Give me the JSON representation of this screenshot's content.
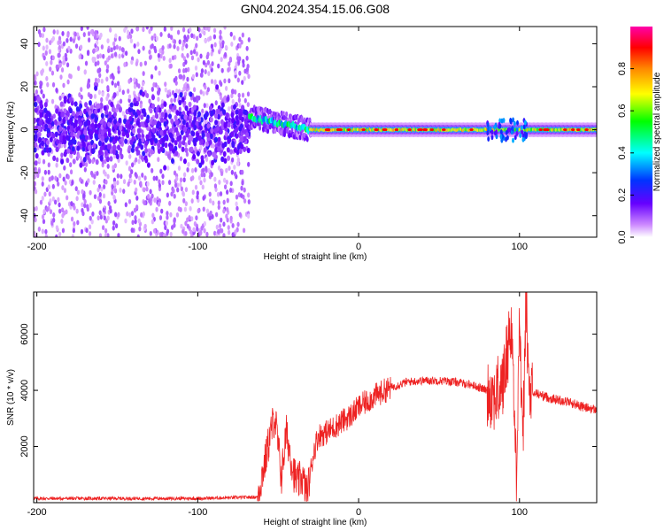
{
  "title": "GN04.2024.354.15.06.G08",
  "chart_data": [
    {
      "type": "heatmap",
      "xlabel": "Height of straight line (km)",
      "ylabel": "Frequency (Hz)",
      "xlim": [
        -202,
        148
      ],
      "ylim": [
        -50,
        48
      ],
      "xticks": [
        -200,
        -100,
        0,
        100
      ],
      "yticks": [
        -40,
        -20,
        0,
        20,
        40
      ],
      "colorbar": {
        "label": "Normalized spectral amplitude",
        "range": [
          0,
          1
        ],
        "ticks": [
          0.0,
          0.2,
          0.4,
          0.6,
          0.8
        ],
        "colors": [
          "#ffffff",
          "#cc88ff",
          "#6600ff",
          "#0033ff",
          "#00ffff",
          "#00ff00",
          "#ffff00",
          "#ff8800",
          "#ff0000",
          "#ff00aa"
        ]
      },
      "regions": [
        {
          "x": [
            -202,
            -68
          ],
          "description_value": "broadband noise, amplitude ~0.05-0.25, spread -50 to 48 Hz, core -10 to 10 Hz"
        },
        {
          "x": [
            -68,
            -30
          ],
          "center_hz": [
            6,
            0
          ],
          "amplitude": 0.5
        },
        {
          "x": [
            -30,
            148
          ],
          "center_hz": 0,
          "amplitude": 0.9
        }
      ],
      "grid": false
    },
    {
      "type": "line",
      "xlabel": "Height of straight line (km)",
      "ylabel": "SNR (10 * v/v)",
      "xlim": [
        -202,
        148
      ],
      "ylim": [
        0,
        7500
      ],
      "xticks": [
        -200,
        -100,
        0,
        100
      ],
      "yticks": [
        2000,
        4000,
        6000
      ],
      "color": "#ee2222",
      "series": [
        {
          "x": [
            -202,
            -150,
            -100,
            -63,
            -58,
            -55,
            -52,
            -50,
            -48,
            -45,
            -42,
            -40,
            -38,
            -35,
            -32,
            -28,
            -25,
            -20,
            -15,
            -10,
            -5,
            0,
            5,
            10,
            20,
            30,
            40,
            50,
            60,
            70,
            80,
            85,
            90,
            95,
            98,
            100,
            102,
            104,
            106,
            110,
            120,
            130,
            140,
            148
          ],
          "y": [
            150,
            150,
            150,
            200,
            1500,
            2400,
            3100,
            2000,
            900,
            2500,
            1600,
            1000,
            700,
            900,
            300,
            1800,
            2400,
            2500,
            2700,
            2900,
            3100,
            3400,
            3600,
            3800,
            4100,
            4300,
            4350,
            4350,
            4300,
            4200,
            4000,
            3800,
            4300,
            6500,
            900,
            6800,
            1600,
            7400,
            3800,
            3900,
            3700,
            3600,
            3400,
            3300
          ]
        }
      ],
      "grid": false
    }
  ]
}
